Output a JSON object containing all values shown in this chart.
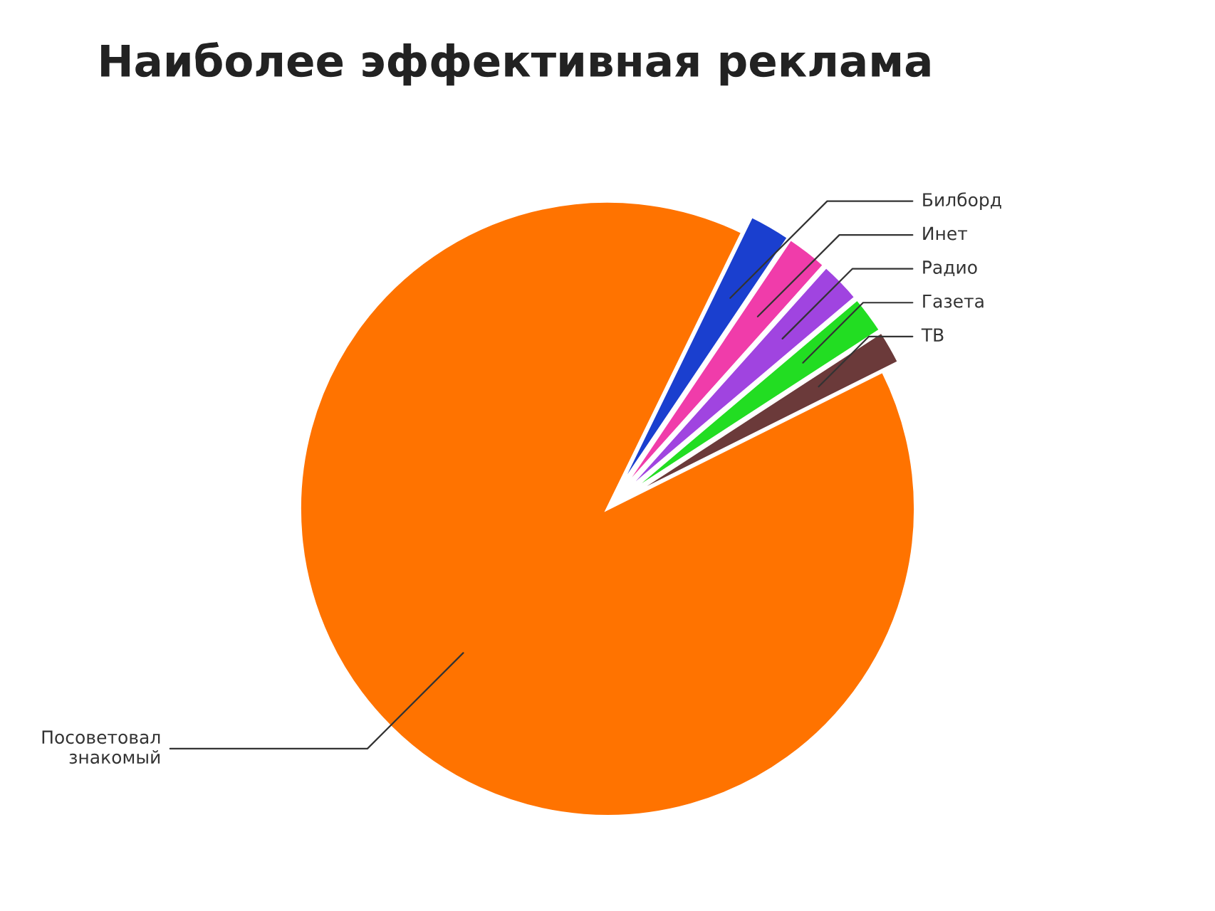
{
  "chart_data": {
    "type": "pie",
    "title": "Наиболее эффективная реклама",
    "categories": [
      "Билборд",
      "Инет",
      "Радио",
      "Газета",
      "ТВ",
      "Посоветовал\nзнакомый"
    ],
    "values": [
      2.2,
      2.2,
      2.2,
      2.0,
      1.8,
      89.6
    ],
    "colors": [
      "#1a3fcf",
      "#f03caa",
      "#a044e0",
      "#22dd22",
      "#6b3a3a",
      "#ff7300"
    ]
  }
}
